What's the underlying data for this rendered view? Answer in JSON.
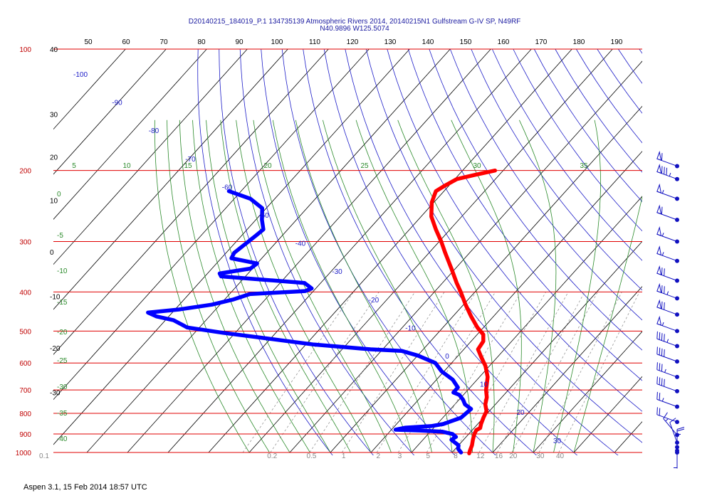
{
  "title": {
    "line1": "D20140215_184019_P.1 134735139 Atmospheric Rivers 2014, 20140215N1 Gulfstream G-IV SP, N49RF",
    "line2": "N40.9896 W125.5074"
  },
  "footer": "Aspen 3.1, 15 Feb 2014  18:57 UTC",
  "colors": {
    "isobar": "#e00000",
    "isotherm": "#000000",
    "dry_adiabat": "#1c1cc8",
    "moist_adiabat": "#2a8a2a",
    "mixing_ratio": "#888888",
    "temperature": "#ff0000",
    "dewpoint": "#0000ff"
  },
  "chart_data": {
    "type": "line",
    "diagram": "skew-T log-P",
    "y_scale": "log",
    "ylim": [
      1000,
      100
    ],
    "pressure_ticks": [
      "100",
      "200",
      "300",
      "400",
      "500",
      "600",
      "700",
      "800",
      "900",
      "1000"
    ],
    "top_ticks": [
      "50",
      "60",
      "70",
      "80",
      "90",
      "100",
      "110",
      "120",
      "130",
      "140",
      "150",
      "160",
      "170",
      "180",
      "190"
    ],
    "isotherm_labels": [
      {
        "t": "40",
        "p": 100
      },
      {
        "t": "30",
        "p": 145
      },
      {
        "t": "20",
        "p": 185
      },
      {
        "t": "10",
        "p": 237
      },
      {
        "t": "0",
        "p": 318
      },
      {
        "t": "-10",
        "p": 410
      },
      {
        "t": "-20",
        "p": 550
      },
      {
        "t": "-30",
        "p": 710
      }
    ],
    "mixing_ratio_labels": [
      "0.1",
      "0.2",
      "0.5",
      "1",
      "2",
      "3",
      "5",
      "8",
      "12",
      "16",
      "20",
      "30",
      "40"
    ],
    "moist_adiabat_labels": [
      "5",
      "10",
      "15",
      "20",
      "25",
      "30",
      "35"
    ],
    "moist_adiabat_left_labels": [
      "0",
      "-5",
      "-10",
      "-15",
      "-20",
      "-25",
      "-30",
      "-35",
      "-40"
    ],
    "dry_adiabat_labels": [
      "-100",
      "-90",
      "-80",
      "-70",
      "-60",
      "-50",
      "-40",
      "-30",
      "-20",
      "-10",
      "0",
      "10",
      "20",
      "30"
    ],
    "series": [
      {
        "name": "temperature",
        "points": [
          [
            200,
            -42
          ],
          [
            205,
            -46
          ],
          [
            210,
            -49.5
          ],
          [
            218,
            -51
          ],
          [
            225,
            -52
          ],
          [
            240,
            -50.5
          ],
          [
            260,
            -47.5
          ],
          [
            280,
            -43.5
          ],
          [
            300,
            -39.5
          ],
          [
            320,
            -36
          ],
          [
            350,
            -31
          ],
          [
            380,
            -26.5
          ],
          [
            400,
            -23.5
          ],
          [
            430,
            -19.5
          ],
          [
            460,
            -15.5
          ],
          [
            490,
            -11.5
          ],
          [
            510,
            -8.5
          ],
          [
            530,
            -7
          ],
          [
            555,
            -6.5
          ],
          [
            580,
            -4
          ],
          [
            610,
            -1
          ],
          [
            650,
            2
          ],
          [
            700,
            4.5
          ],
          [
            730,
            6.3
          ],
          [
            760,
            7.5
          ],
          [
            790,
            9.3
          ],
          [
            820,
            10
          ],
          [
            850,
            10.8
          ],
          [
            870,
            11.5
          ],
          [
            880,
            11
          ],
          [
            900,
            11.4
          ],
          [
            930,
            12.3
          ],
          [
            960,
            13.3
          ],
          [
            990,
            14
          ],
          [
            1005,
            14.4
          ]
        ]
      },
      {
        "name": "dewpoint",
        "points": [
          [
            225,
            -103
          ],
          [
            235,
            -96
          ],
          [
            248,
            -91
          ],
          [
            265,
            -88.5
          ],
          [
            280,
            -86
          ],
          [
            290,
            -86.5
          ],
          [
            300,
            -87
          ],
          [
            320,
            -88
          ],
          [
            330,
            -87.5
          ],
          [
            340,
            -80
          ],
          [
            350,
            -80.5
          ],
          [
            360,
            -87
          ],
          [
            366,
            -86
          ],
          [
            380,
            -64
          ],
          [
            392,
            -61
          ],
          [
            398,
            -62
          ],
          [
            405,
            -75
          ],
          [
            418,
            -78
          ],
          [
            430,
            -82
          ],
          [
            442,
            -89
          ],
          [
            450,
            -96
          ],
          [
            460,
            -93
          ],
          [
            470,
            -88
          ],
          [
            490,
            -83
          ],
          [
            505,
            -73
          ],
          [
            520,
            -62
          ],
          [
            530,
            -55
          ],
          [
            540,
            -48
          ],
          [
            545,
            -43
          ],
          [
            550,
            -38
          ],
          [
            555,
            -33
          ],
          [
            560,
            -25
          ],
          [
            575,
            -20
          ],
          [
            600,
            -14
          ],
          [
            630,
            -10.5
          ],
          [
            660,
            -6
          ],
          [
            690,
            -3
          ],
          [
            710,
            -3
          ],
          [
            720,
            -1
          ],
          [
            740,
            1
          ],
          [
            760,
            2.5
          ],
          [
            780,
            5
          ],
          [
            820,
            4.5
          ],
          [
            850,
            1.5
          ],
          [
            860,
            -1
          ],
          [
            868,
            -7
          ],
          [
            878,
            -9
          ],
          [
            882,
            -3
          ],
          [
            888,
            3
          ],
          [
            900,
            6
          ],
          [
            915,
            7.5
          ],
          [
            930,
            7
          ],
          [
            945,
            8.5
          ],
          [
            960,
            10
          ],
          [
            980,
            10.7
          ],
          [
            1000,
            12.2
          ]
        ]
      }
    ],
    "wind_barbs": [
      {
        "p": 195,
        "dir": 250,
        "kt": 60
      },
      {
        "p": 210,
        "dir": 250,
        "kt": 85
      },
      {
        "p": 235,
        "dir": 250,
        "kt": 55
      },
      {
        "p": 265,
        "dir": 250,
        "kt": 60
      },
      {
        "p": 300,
        "dir": 250,
        "kt": 55
      },
      {
        "p": 335,
        "dir": 250,
        "kt": 55
      },
      {
        "p": 375,
        "dir": 250,
        "kt": 70
      },
      {
        "p": 415,
        "dir": 250,
        "kt": 75
      },
      {
        "p": 455,
        "dir": 250,
        "kt": 70
      },
      {
        "p": 500,
        "dir": 250,
        "kt": 55
      },
      {
        "p": 545,
        "dir": 250,
        "kt": 45
      },
      {
        "p": 595,
        "dir": 250,
        "kt": 40
      },
      {
        "p": 650,
        "dir": 250,
        "kt": 35
      },
      {
        "p": 705,
        "dir": 250,
        "kt": 40
      },
      {
        "p": 770,
        "dir": 250,
        "kt": 25
      },
      {
        "p": 840,
        "dir": 250,
        "kt": 20
      },
      {
        "p": 905,
        "dir": 220,
        "kt": 15
      },
      {
        "p": 945,
        "dir": 200,
        "kt": 10
      },
      {
        "p": 970,
        "dir": 360,
        "kt": 5
      },
      {
        "p": 990,
        "dir": 180,
        "kt": 10
      },
      {
        "p": 1000,
        "dir": 180,
        "kt": 15
      }
    ]
  }
}
